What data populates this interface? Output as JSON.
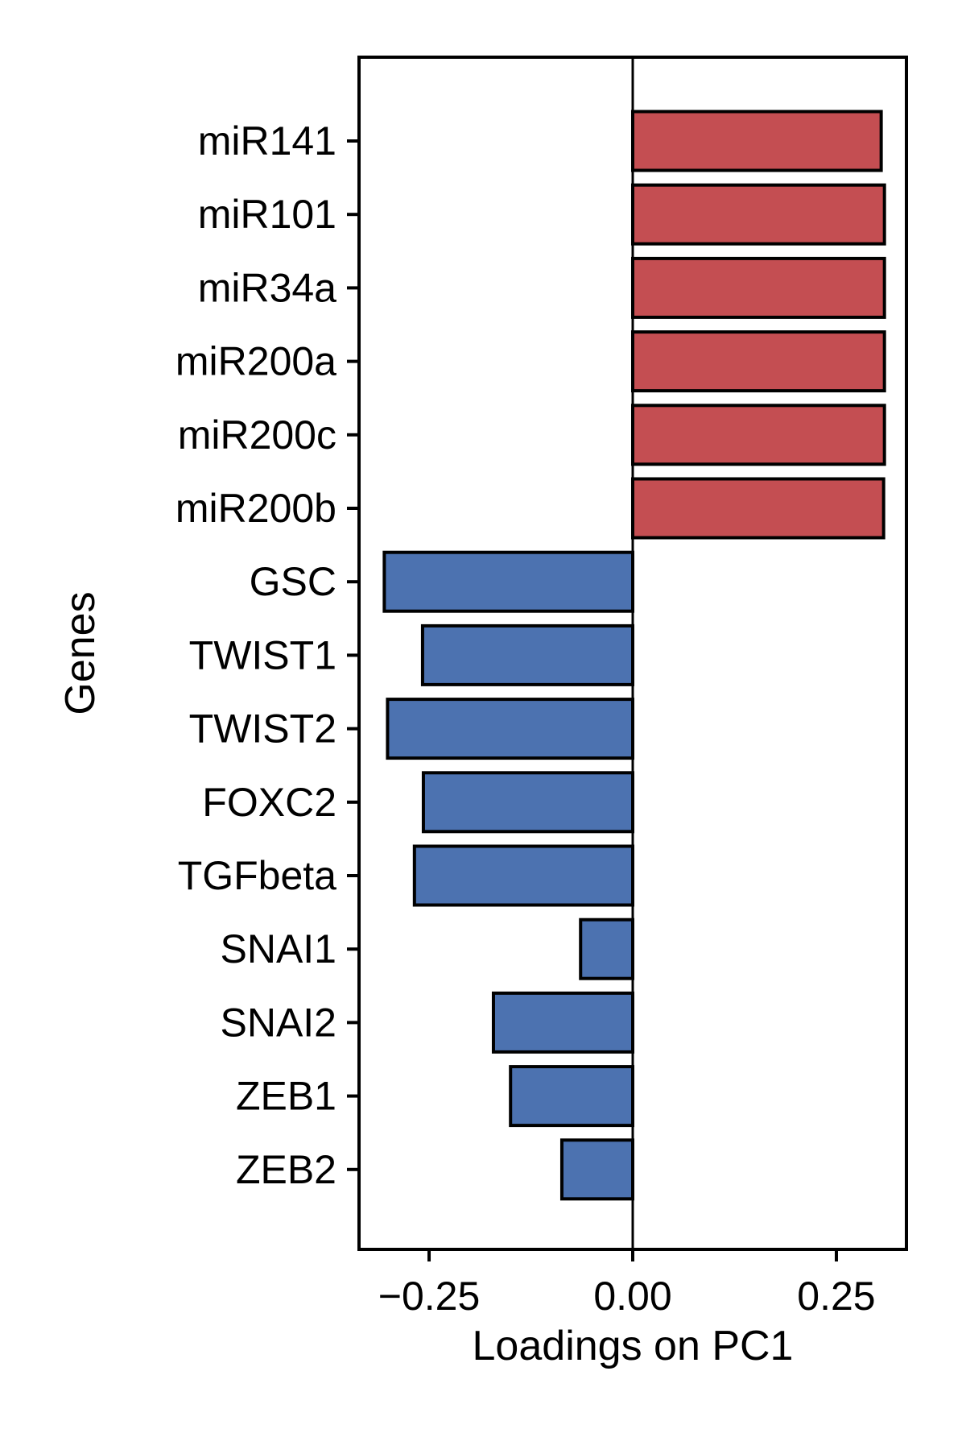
{
  "chart_data": {
    "type": "bar",
    "orientation": "horizontal",
    "title": "",
    "xlabel": "Loadings on PC1",
    "ylabel": "Genes",
    "categories": [
      "miR141",
      "miR101",
      "miR34a",
      "miR200a",
      "miR200c",
      "miR200b",
      "GSC",
      "TWIST1",
      "TWIST2",
      "FOXC2",
      "TGFbeta",
      "SNAI1",
      "SNAI2",
      "ZEB1",
      "ZEB2"
    ],
    "values": [
      0.305,
      0.309,
      0.309,
      0.309,
      0.309,
      0.308,
      -0.305,
      -0.258,
      -0.301,
      -0.257,
      -0.268,
      -0.064,
      -0.171,
      -0.15,
      -0.087
    ],
    "xlim": [
      -0.336,
      0.336
    ],
    "xticks": [
      -0.25,
      0.0,
      0.25
    ],
    "xtick_labels": [
      "−0.25",
      "0.00",
      "0.25"
    ],
    "grid": false,
    "legend": "none",
    "colors": {
      "positive": "#c44e52",
      "negative": "#4c72b0",
      "edge": "#000000",
      "zero_line": "#000000"
    }
  }
}
